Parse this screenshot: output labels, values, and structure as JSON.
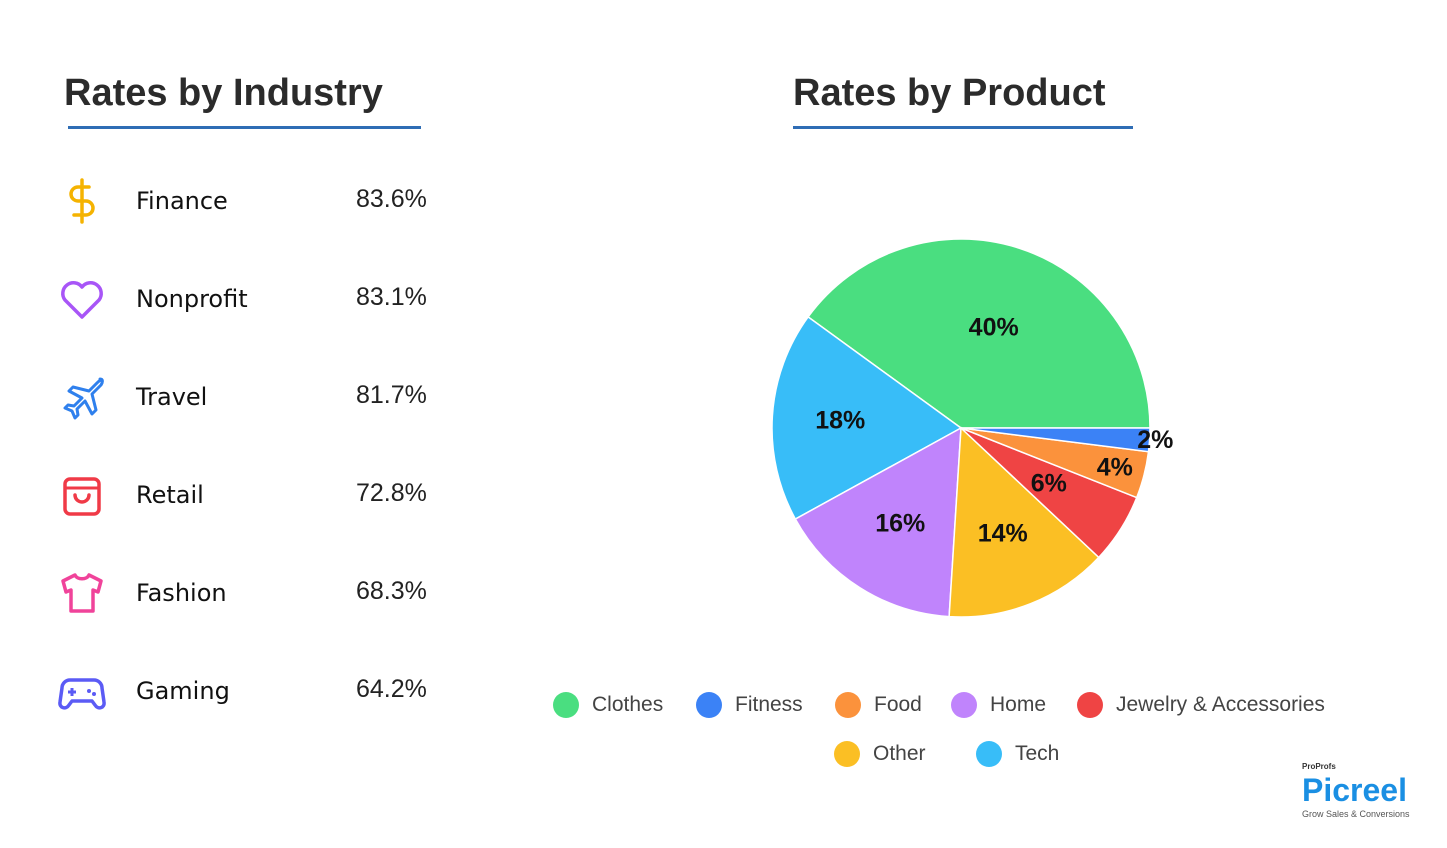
{
  "industry": {
    "title": "Rates by Industry",
    "items": [
      {
        "name": "Finance",
        "value": "83.6%",
        "icon": "dollar-icon",
        "color": "#f5b301"
      },
      {
        "name": "Nonprofit",
        "value": "83.1%",
        "icon": "heart-icon",
        "color": "#a855f7"
      },
      {
        "name": "Travel",
        "value": "81.7%",
        "icon": "airplane-icon",
        "color": "#2f80ed"
      },
      {
        "name": "Retail",
        "value": "72.8%",
        "icon": "shopping-bag-icon",
        "color": "#f03a47"
      },
      {
        "name": "Fashion",
        "value": "68.3%",
        "icon": "tshirt-icon",
        "color": "#f0439a"
      },
      {
        "name": "Gaming",
        "value": "64.2%",
        "icon": "gamepad-icon",
        "color": "#5b5bf5"
      }
    ]
  },
  "chart_data": {
    "type": "pie",
    "title": "Rates by Product",
    "categories": [
      "Clothes",
      "Fitness",
      "Food",
      "Home",
      "Jewelry & Accessories",
      "Other",
      "Tech"
    ],
    "values": [
      40,
      2,
      4,
      16,
      6,
      14,
      18
    ],
    "labels": [
      "40%",
      "2%",
      "4%",
      "16%",
      "6%",
      "14%",
      "18%"
    ],
    "colors": [
      "#4ade80",
      "#3b82f6",
      "#fb923c",
      "#c084fc",
      "#ef4444",
      "#fbbf24",
      "#38bdf8"
    ],
    "legend_position": "bottom"
  },
  "logo": {
    "brand": "ProProfs",
    "name": "Picreel",
    "tagline": "Grow Sales & Conversions"
  }
}
